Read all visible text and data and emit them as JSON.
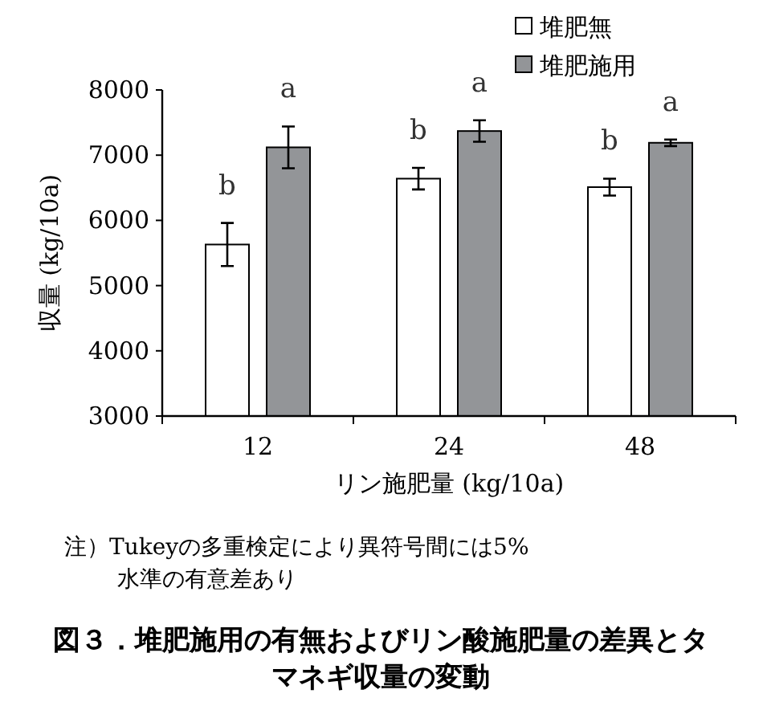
{
  "chart_data": {
    "type": "bar",
    "title": "図３．堆肥施用の有無およびリン酸施肥量の差異とタマネギ収量の変動",
    "xlabel": "リン施肥量 (kg/10a)",
    "ylabel": "収量 (kg/10a)",
    "categories": [
      "12",
      "24",
      "48"
    ],
    "series": [
      {
        "name": "堆肥無",
        "color": "#ffffff",
        "values": [
          5630,
          6640,
          6510
        ],
        "errors": [
          330,
          165,
          130
        ]
      },
      {
        "name": "堆肥施用",
        "color": "#939598",
        "values": [
          7120,
          7370,
          7190
        ],
        "errors": [
          320,
          165,
          50
        ]
      }
    ],
    "ylim": [
      3000,
      8000
    ],
    "yticks": [
      3000,
      4000,
      5000,
      6000,
      7000,
      8000
    ],
    "legend": "top right",
    "grid": false,
    "annotations": [
      "b",
      "a",
      "b",
      "a",
      "b",
      "a",
      "注）Tukeyの多重検定により異符号間には5%水準の有意差あり"
    ]
  }
}
